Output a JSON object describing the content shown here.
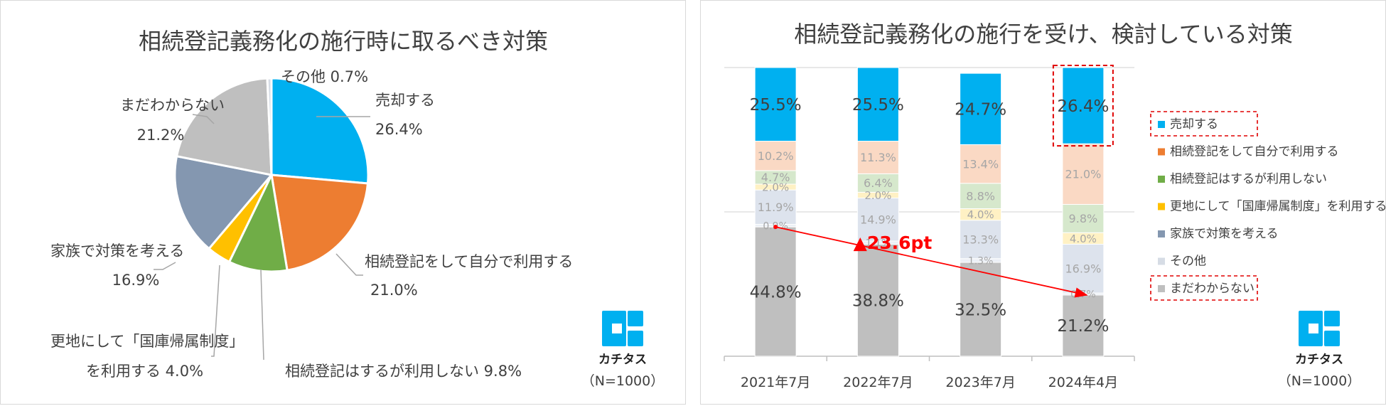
{
  "chart_data": [
    {
      "type": "pie",
      "title": "相続登記義務化の施行時に取るべき対策",
      "slices": [
        {
          "label": "売却する",
          "value": 26.4,
          "value_text": "26.4%",
          "color": "#00b0f0"
        },
        {
          "label": "相続登記をして自分で利用する",
          "value": 21.0,
          "value_text": "21.0%",
          "color": "#ed7d31"
        },
        {
          "label": "相続登記はするが利用しない",
          "value": 9.8,
          "value_text": "9.8%",
          "color": "#70ad47"
        },
        {
          "label": "更地にして「国庫帰属制度」を利用する",
          "label_lines": [
            "更地にして「国庫帰属制度」",
            "を利用する"
          ],
          "value": 4.0,
          "value_text": "4.0%",
          "color": "#ffc000"
        },
        {
          "label": "家族で対策を考える",
          "value": 16.9,
          "value_text": "16.9%",
          "color": "#8497b0"
        },
        {
          "label": "まだわからない",
          "value": 21.2,
          "value_text": "21.2%",
          "color": "#bfbfbf"
        },
        {
          "label": "その他",
          "value": 0.7,
          "value_text": "0.7%",
          "color": "#d6dce5"
        }
      ],
      "n_label": "（N=1000）",
      "logo_text": "カチタス"
    },
    {
      "type": "bar",
      "stacked": true,
      "title": "相続登記義務化の施行を受け、検討している対策",
      "categories": [
        "2021年7月",
        "2022年7月",
        "2023年7月",
        "2024年4月"
      ],
      "ylim": [
        0,
        100
      ],
      "series": [
        {
          "name": "まだわからない",
          "values": [
            44.8,
            38.8,
            32.5,
            21.2
          ],
          "labels": [
            "44.8%",
            "38.8%",
            "32.5%",
            "21.2%"
          ],
          "color": "#bfbfbf",
          "text": "#404040",
          "fs": 23
        },
        {
          "name": "その他",
          "values": [
            0.9,
            1.1,
            1.3,
            0.7
          ],
          "labels": [
            "0.9%",
            "1.1%",
            "1.3%",
            "0.7%"
          ],
          "color": "#ecf0f6",
          "text": "#a6a6a6",
          "fs": 14
        },
        {
          "name": "家族で対策を考える",
          "values": [
            11.9,
            14.9,
            13.3,
            16.9
          ],
          "labels": [
            "11.9%",
            "14.9%",
            "13.3%",
            "16.9%"
          ],
          "color": "#dde3ed",
          "text": "#a6a6a6",
          "fs": 16
        },
        {
          "name": "更地にして「国庫帰属制度」を利用する",
          "values": [
            2.0,
            2.0,
            4.0,
            4.0
          ],
          "labels": [
            "2.0%",
            "2.0%",
            "4.0%",
            "4.0%"
          ],
          "color": "#fff1c4",
          "text": "#a6a6a6",
          "fs": 15
        },
        {
          "name": "相続登記はするが利用しない",
          "values": [
            4.7,
            6.4,
            8.8,
            9.8
          ],
          "labels": [
            "4.7%",
            "6.4%",
            "8.8%",
            "9.8%"
          ],
          "color": "#d6e8cc",
          "text": "#a6a6a6",
          "fs": 16
        },
        {
          "name": "相続登記をして自分で利用する",
          "values": [
            10.2,
            11.3,
            13.4,
            21.0
          ],
          "labels": [
            "10.2%",
            "11.3%",
            "13.4%",
            "21.0%"
          ],
          "color": "#fad9c4",
          "text": "#a6a6a6",
          "fs": 16
        },
        {
          "name": "売却する",
          "values": [
            25.5,
            25.5,
            24.7,
            26.4
          ],
          "labels": [
            "25.5%",
            "25.5%",
            "24.7%",
            "26.4%"
          ],
          "color": "#00b0f0",
          "text": "#404040",
          "fs": 23
        }
      ],
      "legend_order": [
        "売却する",
        "相続登記をして自分で利用する",
        "相続登記はするが利用しない",
        "更地にして「国庫帰属制度」を利用する",
        "家族で対策を考える",
        "その他",
        "まだわからない"
      ],
      "legend_colors": [
        "#00b0f0",
        "#ed7d31",
        "#70ad47",
        "#ffc000",
        "#8497b0",
        "#d6dce5",
        "#bfbfbf"
      ],
      "legend_highlighted": [
        "売却する",
        "まだわからない"
      ],
      "annotation": {
        "text": "▲23.6pt",
        "color": "#ff0000",
        "from": {
          "category": "2021年7月",
          "value": 44.8
        },
        "to": {
          "category": "2024年4月",
          "value": 21.2
        }
      },
      "highlight_box": {
        "category": "2024年4月",
        "series": "売却する"
      },
      "n_label": "（N=1000）",
      "logo_text": "カチタス"
    }
  ]
}
